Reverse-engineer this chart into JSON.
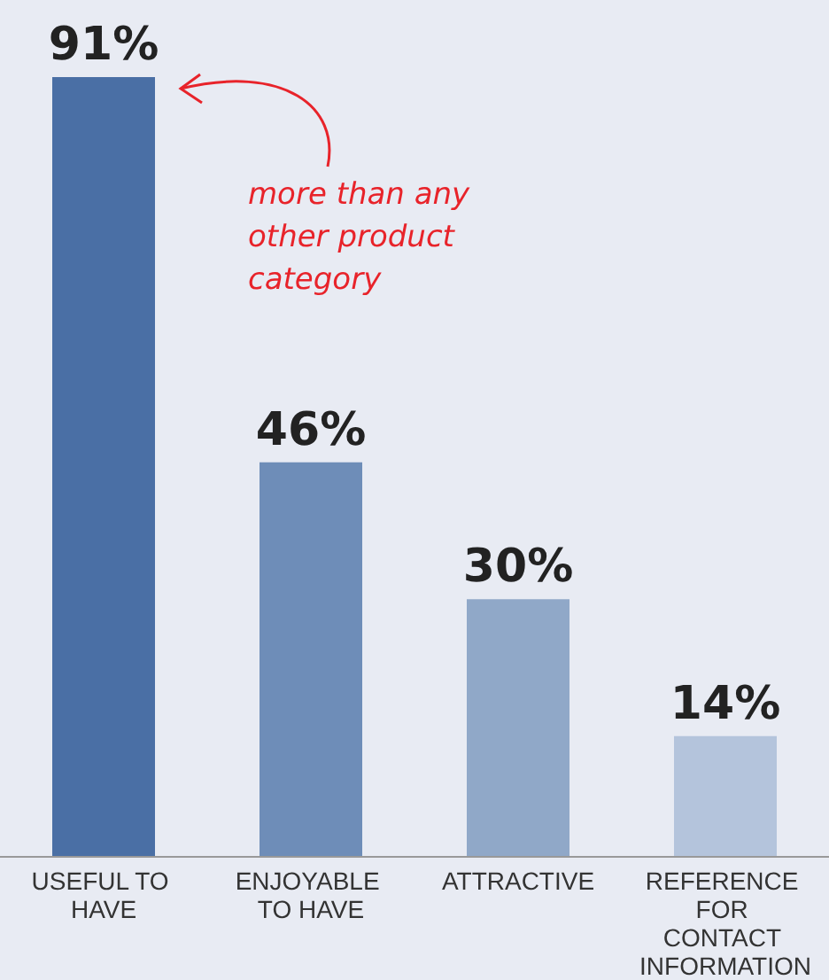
{
  "chart_data": {
    "type": "bar",
    "categories": [
      "USEFUL TO HAVE",
      "ENJOYABLE TO HAVE",
      "ATTRACTIVE",
      "REFERENCE FOR CONTACT INFORMATION"
    ],
    "values": [
      91,
      46,
      30,
      14
    ],
    "colors": [
      "#4a6fa5",
      "#6e8db8",
      "#90a8c8",
      "#b4c4dc"
    ],
    "value_labels": [
      "91%",
      "46%",
      "30%",
      "14%"
    ],
    "annotations": [
      "more than any other product category"
    ]
  }
}
